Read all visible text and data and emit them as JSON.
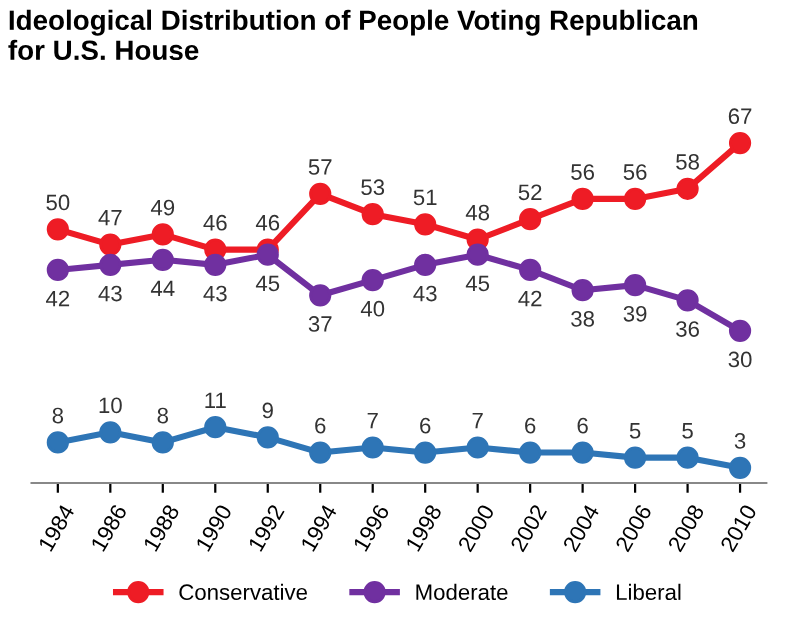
{
  "chart_data": {
    "type": "line",
    "title": "Ideological Distribution of People Voting Republican\nfor U.S. House",
    "categories": [
      "1984",
      "1986",
      "1988",
      "1990",
      "1992",
      "1994",
      "1996",
      "1998",
      "2000",
      "2002",
      "2004",
      "2006",
      "2008",
      "2010"
    ],
    "series": [
      {
        "name": "Conservative",
        "color": "#ee1c25",
        "values": [
          50,
          47,
          49,
          46,
          46,
          57,
          53,
          51,
          48,
          52,
          56,
          56,
          58,
          67
        ]
      },
      {
        "name": "Moderate",
        "color": "#7030a0",
        "values": [
          42,
          43,
          44,
          43,
          45,
          37,
          40,
          43,
          45,
          42,
          38,
          39,
          36,
          30
        ]
      },
      {
        "name": "Liberal",
        "color": "#2e75b6",
        "values": [
          8,
          10,
          8,
          11,
          9,
          6,
          7,
          6,
          7,
          6,
          6,
          5,
          5,
          3
        ]
      }
    ],
    "data_labels": true,
    "legend": "bottom",
    "marker": "circle",
    "line_style": "solid",
    "grid": false,
    "tick_labels": "x"
  }
}
